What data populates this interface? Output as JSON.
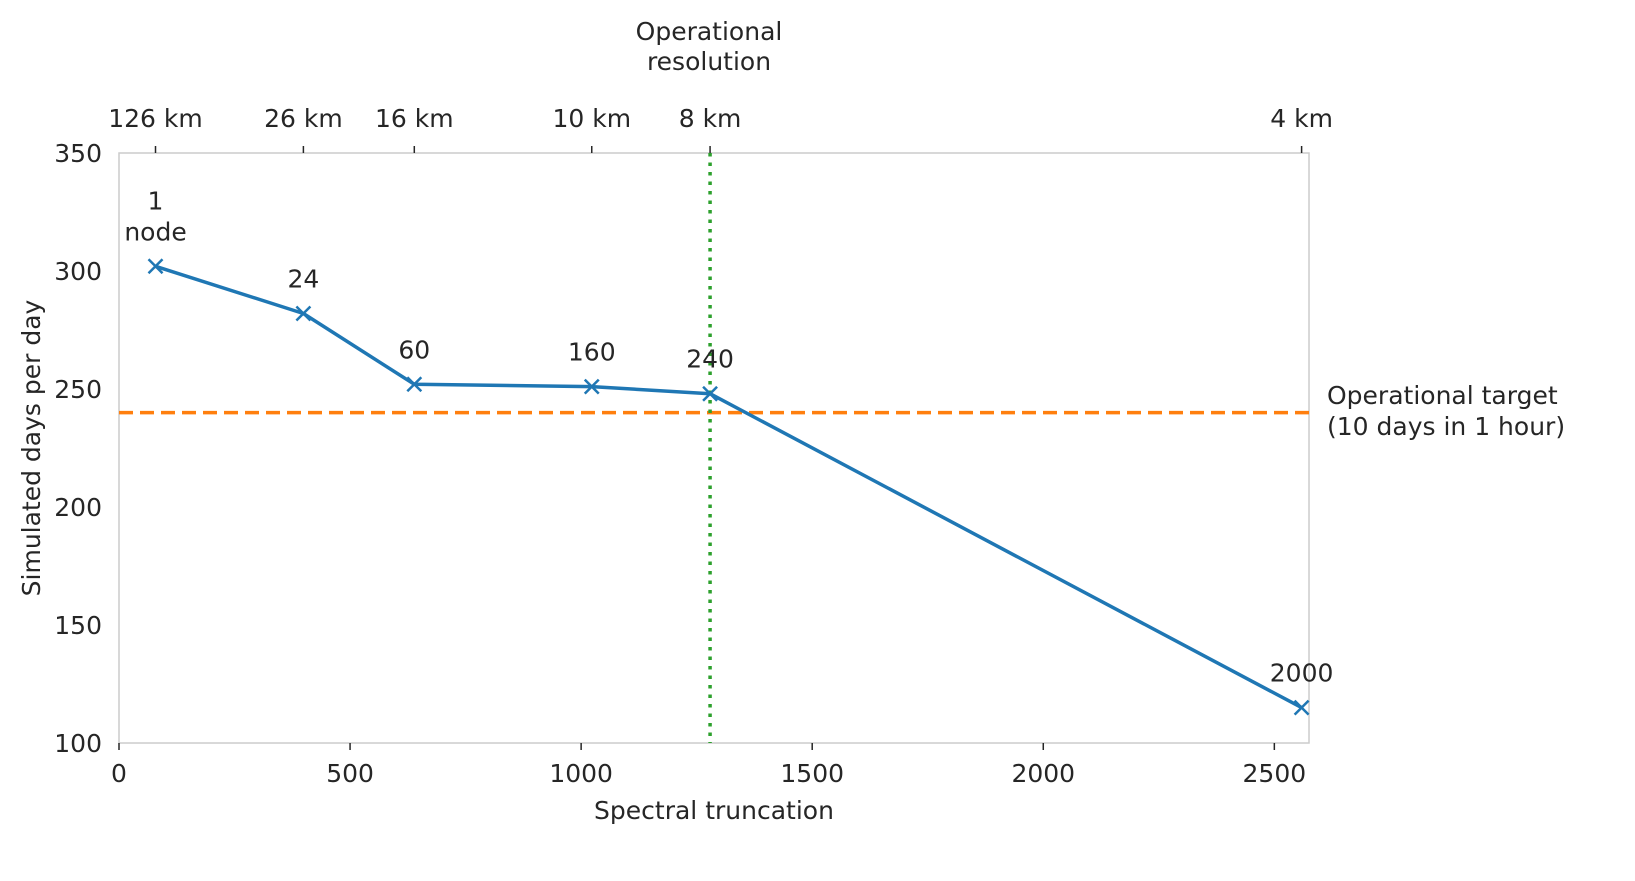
{
  "chart_data": {
    "type": "line",
    "xlabel": "Spectral truncation",
    "ylabel": "Simulated days per day",
    "xlim": [
      0,
      2575
    ],
    "ylim": [
      100,
      350
    ],
    "xticks": [
      "0",
      "500",
      "1000",
      "1500",
      "2000",
      "2500"
    ],
    "yticks": [
      "100",
      "150",
      "200",
      "250",
      "300",
      "350"
    ],
    "grid": false,
    "series": [
      {
        "color": "#1f77b4",
        "marker": "x",
        "points": [
          {
            "x": 79,
            "y": 302,
            "label": "1\nnode"
          },
          {
            "x": 399,
            "y": 282,
            "label": "24"
          },
          {
            "x": 639,
            "y": 252,
            "label": "60"
          },
          {
            "x": 1023,
            "y": 251,
            "label": "160"
          },
          {
            "x": 1279,
            "y": 248,
            "label": "240"
          },
          {
            "x": 2559,
            "y": 115,
            "label": "2000"
          }
        ]
      }
    ],
    "top_axis": {
      "ticks": [
        {
          "x": 79,
          "label": "126 km"
        },
        {
          "x": 399,
          "label": "26 km"
        },
        {
          "x": 639,
          "label": "16 km"
        },
        {
          "x": 1023,
          "label": "10 km"
        },
        {
          "x": 1279,
          "label": "8 km"
        },
        {
          "x": 2559,
          "label": "4 km"
        }
      ]
    },
    "reference_lines": {
      "target": {
        "y": 240,
        "color": "#ff7f0e",
        "style": "dashed",
        "label_line1": "Operational target",
        "label_line2": "(10 days in 1 hour)"
      },
      "resolution": {
        "x": 1279,
        "color": "#2ca02c",
        "style": "dotted",
        "label_line1": "Operational",
        "label_line2": "resolution"
      }
    }
  }
}
